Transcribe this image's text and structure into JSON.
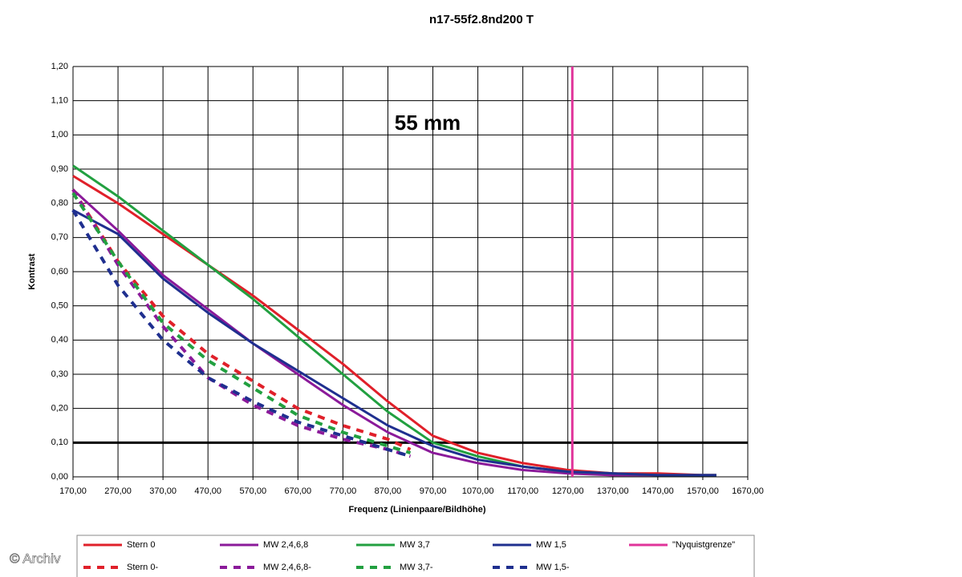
{
  "chart_data": {
    "type": "line",
    "title": "n17-55f2.8nd200 T",
    "annotation": "55 mm",
    "watermark": "© Archiv",
    "xlabel": "Frequenz (Linienpaare/Bildhöhe)",
    "ylabel": "Kontrast",
    "xlim": [
      170,
      1670
    ],
    "ylim": [
      0,
      1.2
    ],
    "xticks": [
      {
        "value": 170,
        "label": "170,00"
      },
      {
        "value": 270,
        "label": "270,00"
      },
      {
        "value": 370,
        "label": "370,00"
      },
      {
        "value": 470,
        "label": "470,00"
      },
      {
        "value": 570,
        "label": "570,00"
      },
      {
        "value": 670,
        "label": "670,00"
      },
      {
        "value": 770,
        "label": "770,00"
      },
      {
        "value": 870,
        "label": "870,00"
      },
      {
        "value": 970,
        "label": "970,00"
      },
      {
        "value": 1070,
        "label": "1070,00"
      },
      {
        "value": 1170,
        "label": "1170,00"
      },
      {
        "value": 1270,
        "label": "1270,00"
      },
      {
        "value": 1370,
        "label": "1370,00"
      },
      {
        "value": 1470,
        "label": "1470,00"
      },
      {
        "value": 1570,
        "label": "1570,00"
      },
      {
        "value": 1670,
        "label": "1670,00"
      }
    ],
    "yticks": [
      {
        "value": 0,
        "label": "0,00"
      },
      {
        "value": 0.1,
        "label": "0,10"
      },
      {
        "value": 0.2,
        "label": "0,20"
      },
      {
        "value": 0.3,
        "label": "0,30"
      },
      {
        "value": 0.4,
        "label": "0,40"
      },
      {
        "value": 0.5,
        "label": "0,50"
      },
      {
        "value": 0.6,
        "label": "0,60"
      },
      {
        "value": 0.7,
        "label": "0,70"
      },
      {
        "value": 0.8,
        "label": "0,80"
      },
      {
        "value": 0.9,
        "label": "0,90"
      },
      {
        "value": 1.0,
        "label": "1,00"
      },
      {
        "value": 1.1,
        "label": "1,10"
      },
      {
        "value": 1.2,
        "label": "1,20"
      }
    ],
    "grid": true,
    "hline": 0.1,
    "legend": "bottom",
    "series": [
      {
        "name": "Stern 0",
        "color": "#e0202a",
        "dashed": false,
        "x": [
          170,
          270,
          370,
          470,
          570,
          670,
          770,
          870,
          970,
          1070,
          1170,
          1270,
          1370,
          1470,
          1570,
          1600
        ],
        "values": [
          0.88,
          0.8,
          0.71,
          0.62,
          0.53,
          0.43,
          0.33,
          0.22,
          0.12,
          0.07,
          0.04,
          0.02,
          0.01,
          0.01,
          0.005,
          0.005
        ]
      },
      {
        "name": "MW 2,4,6,8",
        "color": "#8b1a9a",
        "dashed": false,
        "x": [
          170,
          270,
          370,
          470,
          570,
          670,
          770,
          870,
          970,
          1070,
          1170,
          1270,
          1370,
          1470,
          1570,
          1600
        ],
        "values": [
          0.84,
          0.72,
          0.59,
          0.49,
          0.39,
          0.3,
          0.21,
          0.13,
          0.07,
          0.04,
          0.02,
          0.01,
          0.005,
          0.005,
          0.005,
          0.005
        ]
      },
      {
        "name": "MW 3,7",
        "color": "#22a040",
        "dashed": false,
        "x": [
          170,
          270,
          370,
          470,
          570,
          670,
          770,
          870,
          970,
          1070,
          1170,
          1270,
          1370,
          1470,
          1570,
          1600
        ],
        "values": [
          0.91,
          0.82,
          0.72,
          0.62,
          0.52,
          0.41,
          0.3,
          0.19,
          0.1,
          0.06,
          0.03,
          0.015,
          0.01,
          0.005,
          0.005,
          0.005
        ]
      },
      {
        "name": "MW 1,5",
        "color": "#1f2f8f",
        "dashed": false,
        "x": [
          170,
          270,
          370,
          470,
          570,
          670,
          770,
          870,
          970,
          1070,
          1170,
          1270,
          1370,
          1470,
          1570,
          1600
        ],
        "values": [
          0.78,
          0.71,
          0.58,
          0.48,
          0.39,
          0.31,
          0.23,
          0.15,
          0.09,
          0.05,
          0.03,
          0.015,
          0.01,
          0.005,
          0.005,
          0.005
        ]
      },
      {
        "name": "\"Nyquistgrenze\"",
        "color": "#e0339a",
        "dashed": false,
        "x": [
          1280,
          1280
        ],
        "values": [
          0,
          1.2
        ]
      },
      {
        "name": "Stern 0-",
        "color": "#e0202a",
        "dashed": true,
        "x": [
          170,
          270,
          370,
          470,
          570,
          670,
          770,
          870,
          920
        ],
        "values": [
          0.84,
          0.63,
          0.47,
          0.36,
          0.28,
          0.2,
          0.15,
          0.11,
          0.08
        ]
      },
      {
        "name": "MW 2,4,6,8-",
        "color": "#8b1a9a",
        "dashed": true,
        "x": [
          170,
          270,
          370,
          470,
          570,
          670,
          770,
          870,
          920
        ],
        "values": [
          0.84,
          0.62,
          0.44,
          0.29,
          0.21,
          0.15,
          0.11,
          0.08,
          0.06
        ]
      },
      {
        "name": "MW 3,7-",
        "color": "#22a040",
        "dashed": true,
        "x": [
          170,
          270,
          370,
          470,
          570,
          670,
          770,
          870,
          920
        ],
        "values": [
          0.83,
          0.63,
          0.45,
          0.34,
          0.26,
          0.18,
          0.13,
          0.09,
          0.07
        ]
      },
      {
        "name": "MW 1,5-",
        "color": "#1f2f8f",
        "dashed": true,
        "x": [
          170,
          270,
          370,
          470,
          570,
          670,
          770,
          870,
          920
        ],
        "values": [
          0.78,
          0.56,
          0.4,
          0.29,
          0.22,
          0.16,
          0.12,
          0.08,
          0.06
        ]
      }
    ]
  }
}
